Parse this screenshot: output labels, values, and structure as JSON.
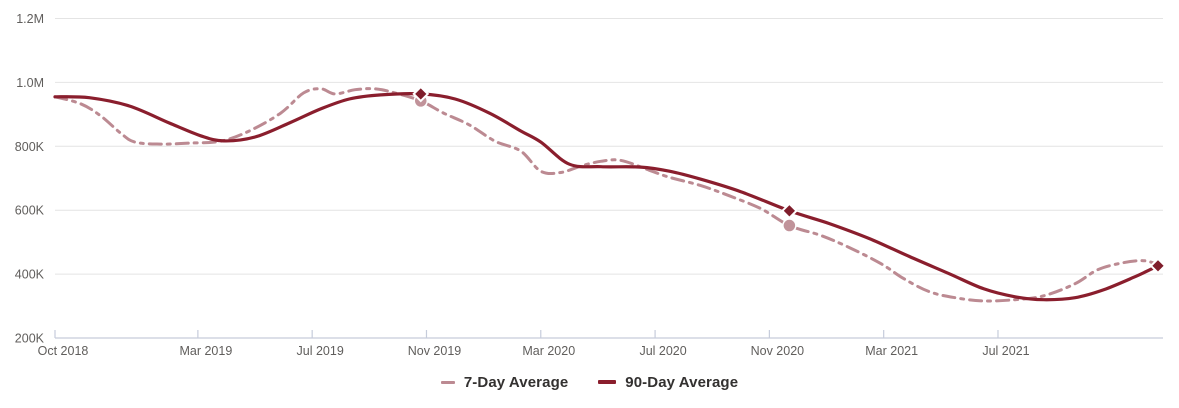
{
  "chart": {
    "legend": {
      "items": [
        {
          "label": "7-Day Average",
          "color": "#BC8A92"
        },
        {
          "label": "90-Day Average",
          "color": "#8A1E2D"
        }
      ]
    }
  },
  "colors": {
    "series_7day": "#BC8A92",
    "series_90day": "#8A1E2D",
    "marker_circle_fill": "#C1939A",
    "marker_diamond_fill": "#7F1D2B",
    "gridline": "#E4E4E4",
    "axis_line": "#C6CCDB",
    "axis_text": "#605E5C",
    "legend_text": "#333130"
  },
  "chart_data": {
    "type": "line",
    "title": "",
    "x_unit": "months since Oct 2018",
    "value_unit": "thousands",
    "x_domain": [
      0,
      38.6
    ],
    "ylim_thousands": [
      200,
      1200
    ],
    "grid": "horizontal",
    "legend_position": "bottom-center",
    "y_ticks": [
      {
        "label": "1.2M",
        "value": 1200
      },
      {
        "label": "1.0M",
        "value": 1000
      },
      {
        "label": "800K",
        "value": 800
      },
      {
        "label": "600K",
        "value": 600
      },
      {
        "label": "400K",
        "value": 400
      },
      {
        "label": "200K",
        "value": 200
      }
    ],
    "x_ticks": [
      {
        "label": "Oct 2018",
        "month": 0
      },
      {
        "label": "Mar 2019",
        "month": 5
      },
      {
        "label": "Jul 2019",
        "month": 9
      },
      {
        "label": "Nov 2019",
        "month": 13
      },
      {
        "label": "Mar 2020",
        "month": 17
      },
      {
        "label": "Jul 2020",
        "month": 21
      },
      {
        "label": "Nov 2020",
        "month": 25
      },
      {
        "label": "Mar 2021",
        "month": 29
      },
      {
        "label": "Jul 2021",
        "month": 33
      }
    ],
    "series": [
      {
        "name": "7-Day Average",
        "line_style": "dash-dot",
        "color": "#BC8A92",
        "stroke_width": 3,
        "marker_shape": "circle",
        "marker_color": "#C1939A",
        "points": [
          [
            0,
            955
          ],
          [
            0.9,
            933
          ],
          [
            1.6,
            895
          ],
          [
            2.3,
            841
          ],
          [
            2.8,
            813
          ],
          [
            3.7,
            807
          ],
          [
            4.7,
            810
          ],
          [
            5.8,
            816
          ],
          [
            6.8,
            848
          ],
          [
            7.9,
            904
          ],
          [
            8.7,
            967
          ],
          [
            9.3,
            980
          ],
          [
            9.8,
            964
          ],
          [
            10.5,
            977
          ],
          [
            11.2,
            980
          ],
          [
            11.9,
            967
          ],
          [
            12.8,
            942
          ],
          [
            13.6,
            904
          ],
          [
            14.5,
            867
          ],
          [
            15.4,
            816
          ],
          [
            16.3,
            785
          ],
          [
            17,
            722
          ],
          [
            17.7,
            718
          ],
          [
            18.4,
            738
          ],
          [
            19.1,
            753
          ],
          [
            19.8,
            756
          ],
          [
            20.8,
            725
          ],
          [
            21.5,
            703
          ],
          [
            22.6,
            677
          ],
          [
            23.6,
            645
          ],
          [
            24.7,
            605
          ],
          [
            25.7,
            552
          ],
          [
            26.8,
            521
          ],
          [
            27.8,
            483
          ],
          [
            28.9,
            433
          ],
          [
            29.7,
            386
          ],
          [
            30.6,
            345
          ],
          [
            31.5,
            326
          ],
          [
            32.5,
            316
          ],
          [
            33.6,
            320
          ],
          [
            34.6,
            332
          ],
          [
            35.7,
            370
          ],
          [
            36.5,
            414
          ],
          [
            37.4,
            436
          ],
          [
            38.1,
            442
          ],
          [
            38.6,
            430
          ]
        ],
        "markers": [
          [
            12.8,
            942
          ],
          [
            25.7,
            552
          ]
        ]
      },
      {
        "name": "90-Day Average",
        "line_style": "solid",
        "color": "#8A1E2D",
        "stroke_width": 3.2,
        "marker_shape": "diamond",
        "marker_color": "#7F1D2B",
        "points": [
          [
            0,
            955
          ],
          [
            1.2,
            952
          ],
          [
            2.6,
            926
          ],
          [
            4,
            873
          ],
          [
            5.1,
            833
          ],
          [
            5.9,
            817
          ],
          [
            7,
            829
          ],
          [
            8.2,
            873
          ],
          [
            9.3,
            917
          ],
          [
            10.3,
            948
          ],
          [
            11.4,
            961
          ],
          [
            12.8,
            964
          ],
          [
            14,
            948
          ],
          [
            15.2,
            904
          ],
          [
            16.3,
            848
          ],
          [
            17,
            813
          ],
          [
            18,
            744
          ],
          [
            19.1,
            736
          ],
          [
            20.5,
            735
          ],
          [
            21.5,
            722
          ],
          [
            22.6,
            697
          ],
          [
            24,
            658
          ],
          [
            25.7,
            598
          ],
          [
            27.1,
            558
          ],
          [
            28.5,
            511
          ],
          [
            29.9,
            455
          ],
          [
            31.3,
            401
          ],
          [
            32.5,
            354
          ],
          [
            33.6,
            329
          ],
          [
            34.6,
            320
          ],
          [
            35.7,
            326
          ],
          [
            36.7,
            351
          ],
          [
            37.8,
            392
          ],
          [
            38.6,
            426
          ]
        ],
        "markers": [
          [
            12.8,
            964
          ],
          [
            25.7,
            598
          ],
          [
            38.6,
            426
          ]
        ]
      }
    ]
  }
}
